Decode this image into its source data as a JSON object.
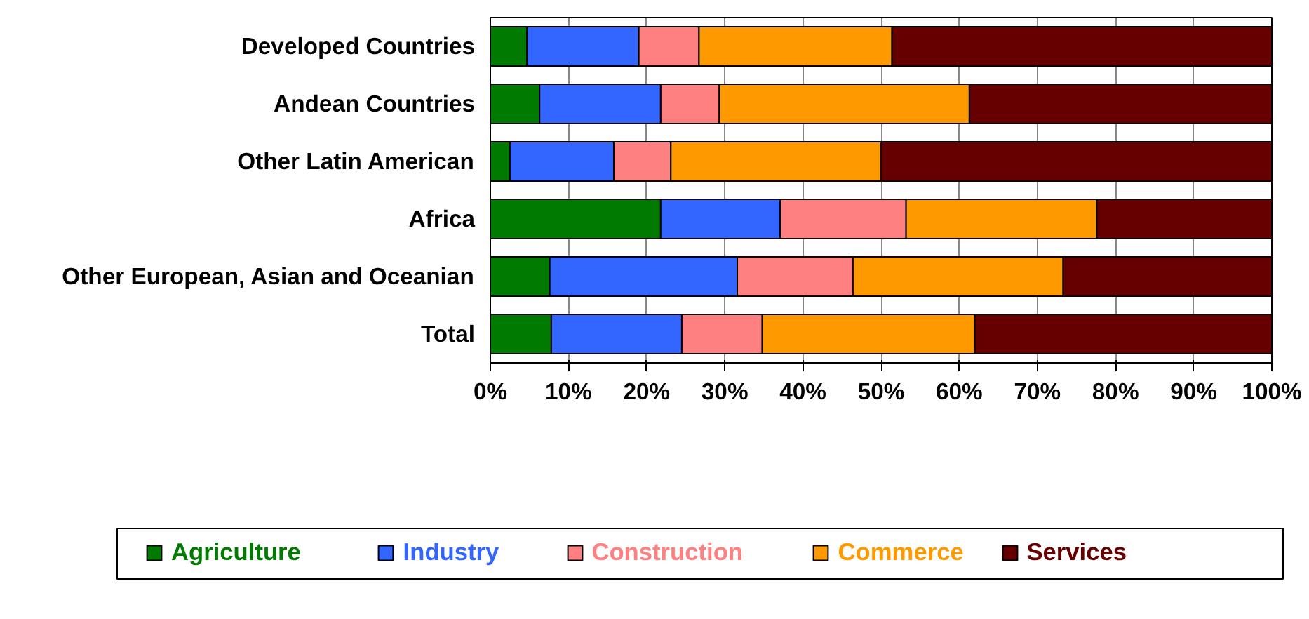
{
  "chart_data": {
    "type": "bar",
    "orientation": "horizontal",
    "stacked": true,
    "categories": [
      "Developed Countries",
      "Andean Countries",
      "Other Latin American",
      "Africa",
      "Other European, Asian and Oceanian",
      "Total"
    ],
    "series": [
      {
        "name": "Agriculture",
        "color": "#007a00",
        "values": [
          4.7,
          6.3,
          2.5,
          21.8,
          7.6,
          7.8
        ]
      },
      {
        "name": "Industry",
        "color": "#3366ff",
        "values": [
          14.3,
          15.5,
          13.3,
          15.3,
          24.0,
          16.7
        ]
      },
      {
        "name": "Construction",
        "color": "#ff8080",
        "values": [
          7.7,
          7.5,
          7.3,
          16.1,
          14.8,
          10.3
        ]
      },
      {
        "name": "Commerce",
        "color": "#ff9900",
        "values": [
          24.7,
          32.0,
          26.9,
          24.4,
          26.9,
          27.2
        ]
      },
      {
        "name": "Services",
        "color": "#660000",
        "values": [
          48.6,
          38.7,
          50.0,
          22.4,
          26.7,
          38.0
        ]
      }
    ],
    "xlim": [
      0,
      100
    ],
    "xticks": [
      {
        "value": 0,
        "label": "0%"
      },
      {
        "value": 10,
        "label": "10%"
      },
      {
        "value": 20,
        "label": "20%"
      },
      {
        "value": 30,
        "label": "30%"
      },
      {
        "value": 40,
        "label": "40%"
      },
      {
        "value": 50,
        "label": "50%"
      },
      {
        "value": 60,
        "label": "60%"
      },
      {
        "value": 70,
        "label": "70%"
      },
      {
        "value": 80,
        "label": "80%"
      },
      {
        "value": 90,
        "label": "90%"
      },
      {
        "value": 100,
        "label": "100%"
      }
    ],
    "grid": "x",
    "legend": "bottom"
  }
}
